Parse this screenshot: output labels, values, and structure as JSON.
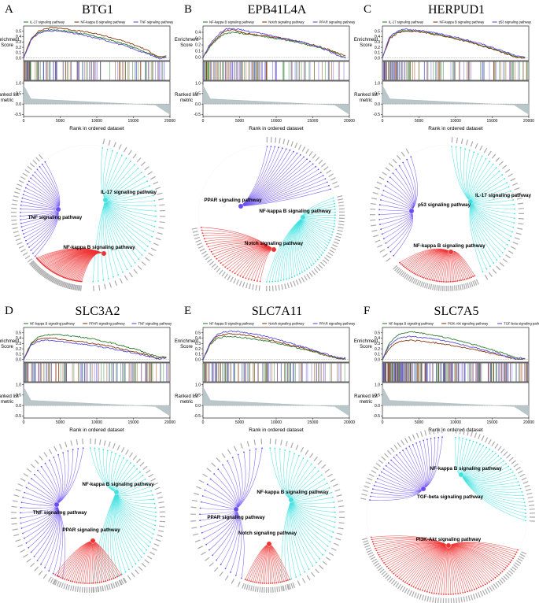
{
  "figure": {
    "xlabel": "Rank in ordered dataset",
    "es_label": "Enrichment Score",
    "rl_label": "Ranked list metric"
  },
  "panels": [
    {
      "label": "A",
      "gene": "BTG1",
      "chart_data": {
        "type": "line",
        "title": "BTG1",
        "xlabel": "Rank in ordered dataset",
        "ylabel": "Enrichment Score",
        "xlim": [
          0,
          20000
        ],
        "ylim": [
          -0.05,
          0.6
        ],
        "x": [
          0,
          1000,
          2000,
          3000,
          4000,
          5000,
          6000,
          8000,
          10000,
          12000,
          14000,
          16000,
          17500,
          18500,
          19500
        ],
        "series": [
          {
            "name": "IL-17 signaling pathway",
            "color": "#2e7d32",
            "values": [
              0,
              0.35,
              0.48,
              0.52,
              0.53,
              0.52,
              0.5,
              0.46,
              0.4,
              0.33,
              0.25,
              0.15,
              0.07,
              0.01,
              0.02
            ]
          },
          {
            "name": "NF-kappa B signaling pathway",
            "color": "#8b3a0f",
            "values": [
              0,
              0.36,
              0.5,
              0.55,
              0.57,
              0.56,
              0.54,
              0.5,
              0.45,
              0.38,
              0.3,
              0.2,
              0.1,
              0.02,
              0.03
            ]
          },
          {
            "name": "TNF signaling pathway",
            "color": "#5b4fd6",
            "values": [
              0,
              0.33,
              0.46,
              0.5,
              0.51,
              0.5,
              0.48,
              0.43,
              0.37,
              0.3,
              0.22,
              0.12,
              0.05,
              -0.01,
              0.01
            ]
          }
        ],
        "es_ticks": [
          "0.0",
          "0.1",
          "0.2",
          "0.3",
          "0.4",
          "0.5"
        ],
        "rl_ticks": [
          "1.0",
          "0.5",
          "0.0",
          "-0.5"
        ],
        "x_ticks": [
          "0",
          "5000",
          "10000",
          "15000",
          "20000"
        ]
      },
      "network": {
        "pathways": [
          {
            "name": "IL-17 signaling pathway",
            "color": "#3ee0e0",
            "genes": 38
          },
          {
            "name": "TNF signaling pathway",
            "color": "#6a4cf0",
            "genes": 30
          },
          {
            "name": "NF-kappa B signaling pathway",
            "color": "#ee3333",
            "genes": 48
          }
        ]
      }
    },
    {
      "label": "B",
      "gene": "EPB41L4A",
      "chart_data": {
        "type": "line",
        "title": "EPB41L4A",
        "xlabel": "Rank in ordered dataset",
        "ylabel": "Enrichment Score",
        "xlim": [
          0,
          20000
        ],
        "ylim": [
          -0.05,
          0.5
        ],
        "x": [
          0,
          1000,
          2000,
          3000,
          4000,
          5000,
          6000,
          8000,
          10000,
          12000,
          14000,
          16000,
          17500,
          18500,
          19500
        ],
        "series": [
          {
            "name": "NF-kappa B signaling pathway",
            "color": "#2e7d32",
            "values": [
              0,
              0.18,
              0.3,
              0.38,
              0.4,
              0.39,
              0.37,
              0.34,
              0.3,
              0.26,
              0.21,
              0.15,
              0.1,
              0.05,
              0.0
            ]
          },
          {
            "name": "Notch signaling pathway",
            "color": "#8b3a0f",
            "values": [
              0,
              0.2,
              0.32,
              0.42,
              0.44,
              0.41,
              0.38,
              0.35,
              0.32,
              0.28,
              0.23,
              0.17,
              0.11,
              0.07,
              0.02
            ]
          },
          {
            "name": "PPAR signaling pathway",
            "color": "#5b4fd6",
            "values": [
              0,
              0.22,
              0.35,
              0.45,
              0.46,
              0.44,
              0.42,
              0.38,
              0.33,
              0.28,
              0.23,
              0.16,
              0.08,
              0.03,
              -0.01
            ]
          }
        ],
        "es_ticks": [
          "0.0",
          "0.1",
          "0.2",
          "0.3",
          "0.4"
        ],
        "rl_ticks": [
          "1.0",
          "0.5",
          "0.0",
          "-0.5"
        ],
        "x_ticks": [
          "0",
          "5000",
          "10000",
          "15000",
          "20000"
        ]
      },
      "network": {
        "pathways": [
          {
            "name": "PPAR signaling pathway",
            "color": "#6a4cf0",
            "genes": 22
          },
          {
            "name": "NF-kappa B signaling pathway",
            "color": "#3ee0e0",
            "genes": 44
          },
          {
            "name": "Notch signaling pathway",
            "color": "#ee3333",
            "genes": 30
          }
        ]
      }
    },
    {
      "label": "C",
      "gene": "HERPUD1",
      "chart_data": {
        "type": "line",
        "title": "HERPUD1",
        "xlabel": "Rank in ordered dataset",
        "ylabel": "Enrichment Score",
        "xlim": [
          0,
          20000
        ],
        "ylim": [
          -0.05,
          0.6
        ],
        "x": [
          0,
          1000,
          2000,
          3000,
          4000,
          5000,
          6000,
          8000,
          10000,
          12000,
          14000,
          16000,
          17500,
          18500,
          19500
        ],
        "series": [
          {
            "name": "IL-17 signaling pathway",
            "color": "#2e7d32",
            "values": [
              0,
              0.38,
              0.48,
              0.52,
              0.51,
              0.5,
              0.48,
              0.43,
              0.37,
              0.3,
              0.22,
              0.13,
              0.06,
              0.02,
              0.01
            ]
          },
          {
            "name": "NF-kappa B signaling pathway",
            "color": "#8b3a0f",
            "values": [
              0,
              0.36,
              0.46,
              0.5,
              0.5,
              0.49,
              0.47,
              0.42,
              0.36,
              0.29,
              0.21,
              0.12,
              0.05,
              0.01,
              0.0
            ]
          },
          {
            "name": "p53 signaling pathway",
            "color": "#5b4fd6",
            "values": [
              0,
              0.4,
              0.5,
              0.54,
              0.53,
              0.52,
              0.5,
              0.45,
              0.39,
              0.32,
              0.24,
              0.15,
              0.08,
              0.03,
              0.02
            ]
          }
        ],
        "es_ticks": [
          "0.0",
          "0.1",
          "0.2",
          "0.3",
          "0.4",
          "0.5"
        ],
        "rl_ticks": [
          "1.0",
          "0.5",
          "0.0",
          "-0.5"
        ],
        "x_ticks": [
          "0",
          "5000",
          "10000",
          "15000",
          "20000"
        ]
      },
      "network": {
        "pathways": [
          {
            "name": "IL-17 signaling pathway",
            "color": "#3ee0e0",
            "genes": 38
          },
          {
            "name": "p53 signaling pathway",
            "color": "#6a4cf0",
            "genes": 24
          },
          {
            "name": "NF-kappa B signaling pathway",
            "color": "#ee3333",
            "genes": 46
          }
        ]
      }
    },
    {
      "label": "D",
      "gene": "SLC3A2",
      "chart_data": {
        "type": "line",
        "title": "SLC3A2",
        "xlabel": "Rank in ordered dataset",
        "ylabel": "Enrichment Score",
        "xlim": [
          0,
          20000
        ],
        "ylim": [
          -0.05,
          0.6
        ],
        "x": [
          0,
          1000,
          2000,
          3000,
          4000,
          5000,
          6000,
          8000,
          10000,
          12000,
          14000,
          16000,
          17500,
          18500,
          19500
        ],
        "series": [
          {
            "name": "NF-kappa B signaling pathway",
            "color": "#2e7d32",
            "values": [
              0,
              0.3,
              0.42,
              0.46,
              0.47,
              0.46,
              0.45,
              0.42,
              0.37,
              0.31,
              0.24,
              0.16,
              0.09,
              0.04,
              0.05
            ]
          },
          {
            "name": "PPAR signaling pathway",
            "color": "#8b3a0f",
            "values": [
              0,
              0.28,
              0.38,
              0.4,
              0.4,
              0.38,
              0.36,
              0.33,
              0.29,
              0.24,
              0.18,
              0.12,
              0.06,
              0.02,
              0.04
            ]
          },
          {
            "name": "TNF signaling pathway",
            "color": "#5b4fd6",
            "values": [
              0,
              0.26,
              0.34,
              0.36,
              0.35,
              0.34,
              0.32,
              0.29,
              0.25,
              0.2,
              0.15,
              0.09,
              0.04,
              0.01,
              0.03
            ]
          }
        ],
        "es_ticks": [
          "0.0",
          "0.1",
          "0.2",
          "0.3",
          "0.4",
          "0.5"
        ],
        "rl_ticks": [
          "1.0",
          "0.5",
          "0.0",
          "-0.5"
        ],
        "x_ticks": [
          "0",
          "5000",
          "10000",
          "15000",
          "20000"
        ]
      },
      "network": {
        "pathways": [
          {
            "name": "NF-kappa B signaling pathway",
            "color": "#3ee0e0",
            "genes": 48
          },
          {
            "name": "TNF signaling pathway",
            "color": "#6a4cf0",
            "genes": 36
          },
          {
            "name": "PPAR signaling pathway",
            "color": "#ee3333",
            "genes": 34
          }
        ]
      }
    },
    {
      "label": "E",
      "gene": "SLC7A11",
      "chart_data": {
        "type": "line",
        "title": "SLC7A11",
        "xlabel": "Rank in ordered dataset",
        "ylabel": "Enrichment Score",
        "xlim": [
          0,
          20000
        ],
        "ylim": [
          -0.05,
          0.6
        ],
        "x": [
          0,
          1000,
          2000,
          3000,
          4000,
          5000,
          6000,
          8000,
          10000,
          12000,
          14000,
          16000,
          17500,
          18500,
          19500
        ],
        "series": [
          {
            "name": "NF-kappa B signaling pathway",
            "color": "#2e7d32",
            "values": [
              0,
              0.28,
              0.4,
              0.43,
              0.43,
              0.42,
              0.4,
              0.36,
              0.31,
              0.25,
              0.18,
              0.11,
              0.05,
              0.02,
              0.0
            ]
          },
          {
            "name": "Notch signaling pathway",
            "color": "#8b3a0f",
            "values": [
              0,
              0.3,
              0.44,
              0.47,
              0.48,
              0.47,
              0.45,
              0.4,
              0.34,
              0.27,
              0.2,
              0.12,
              0.06,
              0.02,
              0.01
            ]
          },
          {
            "name": "PPAR signaling pathway",
            "color": "#5b4fd6",
            "values": [
              0,
              0.32,
              0.48,
              0.52,
              0.53,
              0.52,
              0.5,
              0.45,
              0.38,
              0.3,
              0.22,
              0.14,
              0.07,
              0.03,
              0.02
            ]
          }
        ],
        "es_ticks": [
          "0.0",
          "0.1",
          "0.2",
          "0.3",
          "0.4",
          "0.5"
        ],
        "rl_ticks": [
          "1.0",
          "0.5",
          "0.0",
          "-0.5"
        ],
        "x_ticks": [
          "0",
          "5000",
          "10000",
          "15000",
          "20000"
        ]
      },
      "network": {
        "pathways": [
          {
            "name": "NF-kappa B signaling pathway",
            "color": "#3ee0e0",
            "genes": 40
          },
          {
            "name": "PPAR signaling pathway",
            "color": "#6a4cf0",
            "genes": 30
          },
          {
            "name": "Notch signaling pathway",
            "color": "#ee3333",
            "genes": 24
          }
        ]
      }
    },
    {
      "label": "F",
      "gene": "SLC7A5",
      "chart_data": {
        "type": "line",
        "title": "SLC7A5",
        "xlabel": "Rank in ordered dataset",
        "ylabel": "Enrichment Score",
        "xlim": [
          0,
          20000
        ],
        "ylim": [
          -0.05,
          0.6
        ],
        "x": [
          0,
          1000,
          2000,
          3000,
          4000,
          5000,
          6000,
          8000,
          10000,
          12000,
          14000,
          16000,
          17500,
          18500,
          19500
        ],
        "series": [
          {
            "name": "NF-kappa B signaling pathway",
            "color": "#2e7d32",
            "values": [
              0,
              0.32,
              0.45,
              0.5,
              0.52,
              0.5,
              0.48,
              0.43,
              0.37,
              0.3,
              0.22,
              0.14,
              0.07,
              0.03,
              0.02
            ]
          },
          {
            "name": "PI3K-Akt signaling pathway",
            "color": "#8b3a0f",
            "values": [
              0,
              0.22,
              0.32,
              0.35,
              0.36,
              0.35,
              0.33,
              0.3,
              0.25,
              0.2,
              0.14,
              0.08,
              0.03,
              0.0,
              0.01
            ]
          },
          {
            "name": "TGF-beta signaling pathway",
            "color": "#5b4fd6",
            "values": [
              0,
              0.27,
              0.38,
              0.42,
              0.43,
              0.42,
              0.4,
              0.36,
              0.3,
              0.24,
              0.17,
              0.1,
              0.04,
              0.01,
              0.01
            ]
          }
        ],
        "es_ticks": [
          "0.0",
          "0.1",
          "0.2",
          "0.3",
          "0.4",
          "0.5"
        ],
        "rl_ticks": [
          "1.0",
          "0.5",
          "0.0",
          "-0.5"
        ],
        "x_ticks": [
          "0",
          "5000",
          "10000",
          "15000",
          "20000"
        ]
      },
      "network": {
        "pathways": [
          {
            "name": "NF-kappa B signaling pathway",
            "color": "#3ee0e0",
            "genes": 34
          },
          {
            "name": "TGF-beta signaling pathway",
            "color": "#6a4cf0",
            "genes": 28
          },
          {
            "name": "PI3K-Akt signaling pathway",
            "color": "#ee3333",
            "genes": 80
          }
        ]
      }
    }
  ]
}
